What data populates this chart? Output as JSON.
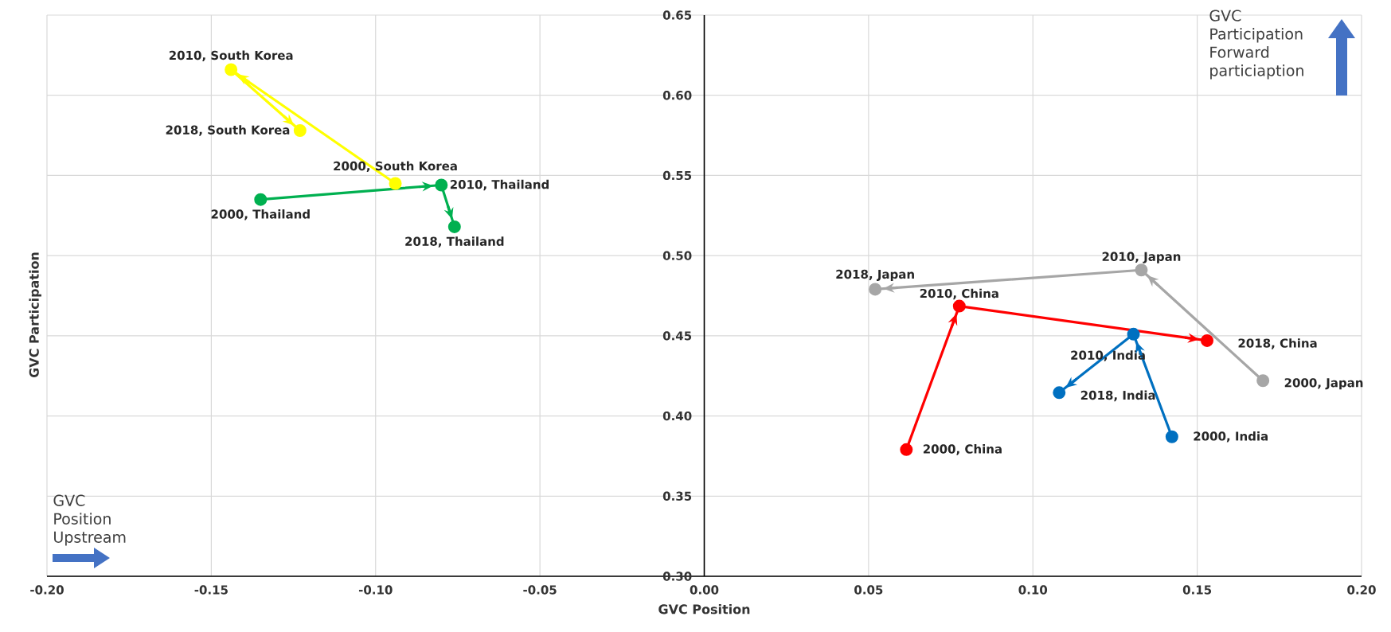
{
  "chart_data": {
    "type": "line",
    "xlabel": "GVC Position",
    "ylabel": "GVC Participation",
    "xlim": [
      -0.2,
      0.2
    ],
    "ylim": [
      0.3,
      0.65
    ],
    "xticks": [
      {
        "value": -0.2,
        "label": "-0.20"
      },
      {
        "value": -0.15,
        "label": "-0.15"
      },
      {
        "value": -0.1,
        "label": "-0.10"
      },
      {
        "value": -0.05,
        "label": "-0.05"
      },
      {
        "value": 0,
        "label": "0.00"
      },
      {
        "value": 0.05,
        "label": "0.05"
      },
      {
        "value": 0.1,
        "label": "0.10"
      },
      {
        "value": 0.15,
        "label": "0.15"
      },
      {
        "value": 0.2,
        "label": "0.20"
      }
    ],
    "yticks": [
      {
        "value": 0.3,
        "label": "0.30"
      },
      {
        "value": 0.35,
        "label": "0.35"
      },
      {
        "value": 0.4,
        "label": "0.40"
      },
      {
        "value": 0.45,
        "label": "0.45"
      },
      {
        "value": 0.5,
        "label": "0.50"
      },
      {
        "value": 0.55,
        "label": "0.55"
      },
      {
        "value": 0.6,
        "label": "0.60"
      },
      {
        "value": 0.65,
        "label": "0.65"
      }
    ],
    "grid": true,
    "marker": "circle",
    "series": [
      {
        "color": "#ffff00",
        "x": [
          -0.094,
          -0.144,
          -0.123
        ],
        "values": [
          0.545,
          0.616,
          0.578
        ]
      },
      {
        "color": "#00b050",
        "x": [
          -0.135,
          -0.08,
          -0.076
        ],
        "values": [
          0.535,
          0.544,
          0.518
        ]
      },
      {
        "color": "#a6a6a6",
        "x": [
          0.17,
          0.133,
          0.052
        ],
        "values": [
          0.422,
          0.491,
          0.479
        ]
      },
      {
        "color": "#ff0000",
        "x": [
          0.0615,
          0.0776,
          0.153
        ],
        "values": [
          0.379,
          0.4685,
          0.447
        ]
      },
      {
        "color": "#0070c0",
        "x": [
          0.1423,
          0.1306,
          0.108
        ],
        "values": [
          0.387,
          0.451,
          0.4145
        ]
      }
    ],
    "annotations": [
      "GVC Position Upstream",
      "GVC Participation Forward particiaption",
      {
        "text": "2000, South Korea",
        "x": -0.094,
        "y": 0.545
      },
      {
        "text": "2010, South Korea",
        "x": -0.144,
        "y": 0.616
      },
      {
        "text": "2018, South Korea",
        "x": -0.123,
        "y": 0.578
      },
      {
        "text": "2000, Thailand",
        "x": -0.135,
        "y": 0.535
      },
      {
        "text": "2010, Thailand",
        "x": -0.08,
        "y": 0.544
      },
      {
        "text": "2018, Thailand",
        "x": -0.076,
        "y": 0.518
      },
      {
        "text": "2000, Japan",
        "x": 0.17,
        "y": 0.422
      },
      {
        "text": "2010, Japan",
        "x": 0.133,
        "y": 0.491
      },
      {
        "text": "2018, Japan",
        "x": 0.052,
        "y": 0.479
      },
      {
        "text": "2000, China",
        "x": 0.0615,
        "y": 0.379
      },
      {
        "text": "2010, China",
        "x": 0.0776,
        "y": 0.4685
      },
      {
        "text": "2018, China",
        "x": 0.153,
        "y": 0.447
      },
      {
        "text": "2000, India",
        "x": 0.1423,
        "y": 0.387
      },
      {
        "text": "2010, India",
        "x": 0.1306,
        "y": 0.451
      },
      {
        "text": "2018, India",
        "x": 0.108,
        "y": 0.4145
      }
    ]
  }
}
